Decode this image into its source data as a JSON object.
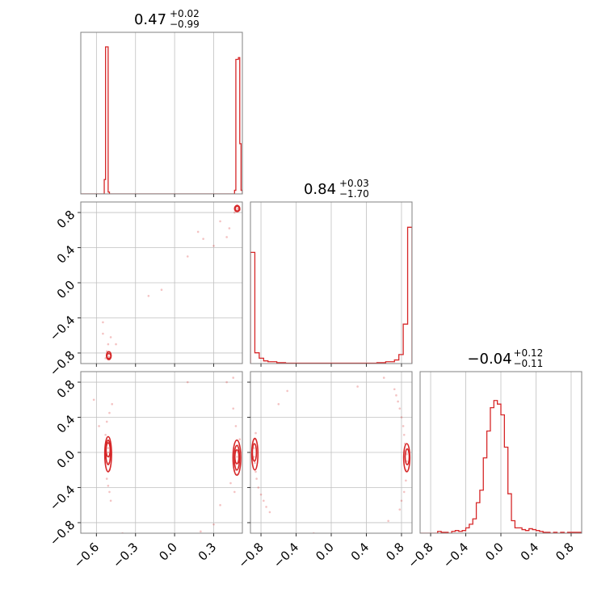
{
  "chart_data": {
    "type": "corner",
    "color": "#d62728",
    "params": [
      {
        "title_value": "0.47",
        "title_plus": "+0.02",
        "title_minus": "−0.99",
        "range": [
          -0.72,
          0.52
        ],
        "ticks": [
          -0.6,
          -0.3,
          0.0,
          0.3
        ],
        "tick_labels": [
          "−0.6",
          "−0.3",
          "0.0",
          "0.3"
        ],
        "hist": {
          "edges": [
            -0.72,
            -0.54,
            -0.53,
            -0.52,
            -0.51,
            -0.5,
            -0.49,
            0.46,
            0.47,
            0.48,
            0.49,
            0.5,
            0.51,
            0.52
          ],
          "counts": [
            0,
            0.08,
            0.82,
            0.82,
            0.01,
            0,
            0,
            0.02,
            0.75,
            0.75,
            0.76,
            0.28,
            0.02
          ]
        }
      },
      {
        "title_value": "0.84",
        "title_plus": "+0.03",
        "title_minus": "−1.70",
        "range": [
          -0.92,
          0.92
        ],
        "ticks": [
          -0.8,
          -0.4,
          0.0,
          0.4,
          0.8
        ],
        "tick_labels": [
          "−0.8",
          "−0.4",
          "0.0",
          "0.4",
          "0.8"
        ],
        "hist": {
          "edges": [
            -0.92,
            -0.87,
            -0.82,
            -0.77,
            -0.72,
            -0.62,
            -0.52,
            0.52,
            0.62,
            0.72,
            0.77,
            0.82,
            0.87,
            0.92
          ],
          "counts": [
            0.62,
            0.06,
            0.03,
            0.015,
            0.01,
            0.005,
            0.002,
            0.005,
            0.01,
            0.02,
            0.05,
            0.22,
            0.76
          ]
        }
      },
      {
        "title_value": "−0.04",
        "title_plus": "+0.12",
        "title_minus": "−0.11",
        "range": [
          -0.92,
          0.92
        ],
        "ticks": [
          -0.8,
          -0.4,
          0.0,
          0.4,
          0.8
        ],
        "tick_labels": [
          "−0.8",
          "−0.4",
          "0.0",
          "0.4",
          "0.8"
        ],
        "hist": {
          "edges": [
            -0.92,
            -0.88,
            -0.84,
            -0.8,
            -0.76,
            -0.72,
            -0.68,
            -0.64,
            -0.6,
            -0.56,
            -0.52,
            -0.48,
            -0.44,
            -0.4,
            -0.36,
            -0.32,
            -0.28,
            -0.24,
            -0.2,
            -0.16,
            -0.12,
            -0.08,
            -0.04,
            0.0,
            0.04,
            0.08,
            0.12,
            0.16,
            0.2,
            0.24,
            0.28,
            0.32,
            0.36,
            0.4,
            0.44,
            0.48,
            0.52,
            0.56,
            0.6,
            0.64,
            0.68,
            0.72,
            0.76,
            0.8,
            0.84,
            0.88,
            0.92
          ],
          "counts": [
            0,
            0,
            0,
            0,
            0,
            0.01,
            0.005,
            0.005,
            0,
            0.01,
            0.015,
            0.01,
            0.015,
            0.03,
            0.05,
            0.08,
            0.17,
            0.24,
            0.42,
            0.57,
            0.7,
            0.74,
            0.72,
            0.66,
            0.48,
            0.22,
            0.07,
            0.03,
            0.03,
            0.02,
            0.015,
            0.025,
            0.02,
            0.015,
            0.01,
            0.005,
            0.005,
            0,
            0.005,
            0,
            0.005,
            0,
            0.005,
            0.005,
            0.005,
            0.005
          ]
        }
      }
    ],
    "pair_points": {
      "1_0": [
        [
          -0.51,
          -0.84
        ],
        [
          -0.52,
          -0.82
        ],
        [
          -0.5,
          -0.85
        ],
        [
          -0.51,
          -0.8
        ],
        [
          -0.53,
          -0.86
        ],
        [
          -0.49,
          -0.83
        ],
        [
          -0.52,
          -0.78
        ],
        [
          -0.51,
          -0.7
        ],
        [
          -0.49,
          -0.62
        ],
        [
          -0.55,
          -0.58
        ],
        [
          0.47,
          0.82
        ],
        [
          0.48,
          0.84
        ],
        [
          0.49,
          0.85
        ],
        [
          0.47,
          0.86
        ],
        [
          0.5,
          0.83
        ],
        [
          0.46,
          0.8
        ],
        [
          0.48,
          0.88
        ],
        [
          0.42,
          0.62
        ],
        [
          0.3,
          0.42
        ],
        [
          0.18,
          0.58
        ],
        [
          0.22,
          0.5
        ],
        [
          -0.1,
          -0.08
        ],
        [
          -0.2,
          -0.15
        ],
        [
          -0.55,
          -0.45
        ],
        [
          0.4,
          0.52
        ],
        [
          0.1,
          0.3
        ],
        [
          0.35,
          0.7
        ],
        [
          -0.45,
          -0.7
        ]
      ],
      "2_0": [
        [
          -0.51,
          0.05
        ],
        [
          -0.51,
          0.0
        ],
        [
          -0.5,
          -0.05
        ],
        [
          -0.52,
          0.1
        ],
        [
          -0.51,
          -0.12
        ],
        [
          -0.5,
          -0.2
        ],
        [
          -0.52,
          -0.3
        ],
        [
          -0.51,
          -0.38
        ],
        [
          -0.5,
          -0.45
        ],
        [
          -0.49,
          -0.55
        ],
        [
          -0.53,
          0.2
        ],
        [
          -0.52,
          0.35
        ],
        [
          -0.5,
          0.45
        ],
        [
          -0.48,
          0.55
        ],
        [
          0.47,
          0.02
        ],
        [
          0.48,
          -0.05
        ],
        [
          0.48,
          -0.12
        ],
        [
          0.47,
          -0.2
        ],
        [
          0.49,
          0.08
        ],
        [
          0.5,
          0.15
        ],
        [
          0.48,
          -0.25
        ],
        [
          0.47,
          0.3
        ],
        [
          0.45,
          0.5
        ],
        [
          0.43,
          -0.35
        ],
        [
          0.46,
          -0.45
        ],
        [
          0.4,
          0.8
        ],
        [
          0.45,
          0.85
        ],
        [
          0.3,
          -0.82
        ],
        [
          0.35,
          -0.6
        ],
        [
          -0.62,
          0.6
        ],
        [
          -0.58,
          0.3
        ],
        [
          -0.4,
          -0.92
        ],
        [
          0.2,
          -0.9
        ],
        [
          0.1,
          0.8
        ]
      ],
      "2_1": [
        [
          -0.88,
          0.05
        ],
        [
          -0.88,
          -0.05
        ],
        [
          -0.87,
          -0.12
        ],
        [
          -0.86,
          -0.22
        ],
        [
          -0.85,
          -0.3
        ],
        [
          -0.83,
          -0.4
        ],
        [
          -0.8,
          -0.48
        ],
        [
          -0.77,
          -0.55
        ],
        [
          -0.74,
          -0.62
        ],
        [
          -0.7,
          -0.68
        ],
        [
          -0.87,
          0.15
        ],
        [
          -0.86,
          0.22
        ],
        [
          0.86,
          -0.02
        ],
        [
          0.86,
          -0.1
        ],
        [
          0.85,
          -0.2
        ],
        [
          0.84,
          0.1
        ],
        [
          0.83,
          0.2
        ],
        [
          0.82,
          0.3
        ],
        [
          0.8,
          0.4
        ],
        [
          0.78,
          0.5
        ],
        [
          0.76,
          0.58
        ],
        [
          0.74,
          0.65
        ],
        [
          0.72,
          0.72
        ],
        [
          0.85,
          -0.32
        ],
        [
          0.83,
          -0.45
        ],
        [
          0.8,
          -0.55
        ],
        [
          0.78,
          -0.65
        ],
        [
          0.6,
          0.85
        ],
        [
          0.65,
          -0.78
        ],
        [
          -0.5,
          0.7
        ],
        [
          -0.2,
          -0.92
        ],
        [
          0.3,
          0.75
        ],
        [
          -0.6,
          0.55
        ]
      ]
    },
    "pair_contours": {
      "1_0": [
        {
          "cx": -0.505,
          "cy": -0.835,
          "rx": 0.01,
          "ry": 0.025
        },
        {
          "cx": -0.505,
          "cy": -0.83,
          "rx": 0.018,
          "ry": 0.045
        },
        {
          "cx": 0.48,
          "cy": 0.845,
          "rx": 0.012,
          "ry": 0.02
        },
        {
          "cx": 0.48,
          "cy": 0.845,
          "rx": 0.02,
          "ry": 0.035
        }
      ],
      "2_0": [
        {
          "cx": -0.51,
          "cy": 0.03,
          "rx": 0.01,
          "ry": 0.08
        },
        {
          "cx": -0.51,
          "cy": 0.0,
          "rx": 0.018,
          "ry": 0.14
        },
        {
          "cx": -0.51,
          "cy": -0.02,
          "rx": 0.026,
          "ry": 0.2
        },
        {
          "cx": 0.478,
          "cy": -0.05,
          "rx": 0.012,
          "ry": 0.08
        },
        {
          "cx": 0.478,
          "cy": -0.06,
          "rx": 0.02,
          "ry": 0.14
        },
        {
          "cx": 0.478,
          "cy": -0.06,
          "rx": 0.03,
          "ry": 0.2
        }
      ],
      "2_1": [
        {
          "cx": -0.875,
          "cy": 0.0,
          "rx": 0.02,
          "ry": 0.1
        },
        {
          "cx": -0.87,
          "cy": -0.02,
          "rx": 0.035,
          "ry": 0.18
        },
        {
          "cx": 0.865,
          "cy": -0.05,
          "rx": 0.02,
          "ry": 0.09
        },
        {
          "cx": 0.86,
          "cy": -0.06,
          "rx": 0.035,
          "ry": 0.16
        }
      ]
    }
  }
}
